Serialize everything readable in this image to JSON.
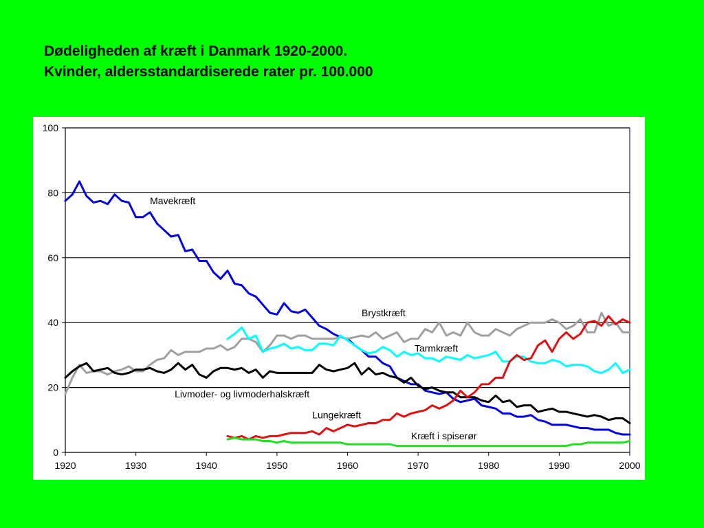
{
  "title_line1": "Dødeligheden af kræft i Danmark 1920-2000.",
  "title_line2": "Kvinder, aldersstandardiserede rater pr. 100.000",
  "chart_data": {
    "type": "line",
    "title": "",
    "xlabel": "",
    "ylabel": "",
    "xlim": [
      1920,
      2000
    ],
    "ylim": [
      0,
      100
    ],
    "xticks": [
      1920,
      1930,
      1940,
      1950,
      1960,
      1970,
      1980,
      1990,
      2000
    ],
    "yticks": [
      0,
      20,
      40,
      60,
      80,
      100
    ],
    "grid": "horizontal",
    "legend": "none",
    "series": [
      {
        "name": "Mavekræft",
        "color": "#0000e0",
        "x": [
          1920,
          1921,
          1922,
          1923,
          1924,
          1925,
          1926,
          1927,
          1928,
          1929,
          1930,
          1931,
          1932,
          1933,
          1934,
          1935,
          1936,
          1937,
          1938,
          1939,
          1940,
          1941,
          1942,
          1943,
          1944,
          1945,
          1946,
          1947,
          1948,
          1949,
          1950,
          1951,
          1952,
          1953,
          1954,
          1955,
          1956,
          1957,
          1958,
          1959,
          1960,
          1961,
          1962,
          1963,
          1964,
          1965,
          1966,
          1967,
          1968,
          1969,
          1970,
          1971,
          1972,
          1973,
          1974,
          1975,
          1976,
          1977,
          1978,
          1979,
          1980,
          1981,
          1982,
          1983,
          1984,
          1985,
          1986,
          1987,
          1988,
          1989,
          1990,
          1991,
          1992,
          1993,
          1994,
          1995,
          1996,
          1997,
          1998,
          1999,
          2000
        ],
        "values": [
          77.5,
          79.5,
          83.5,
          79,
          77,
          77.5,
          76.5,
          79.5,
          77.5,
          77,
          72.5,
          72.5,
          74,
          70.5,
          68.5,
          66.5,
          67,
          62,
          62.5,
          59,
          59,
          55.5,
          53.5,
          56,
          52,
          51.5,
          49,
          48,
          45.5,
          43,
          42.5,
          46,
          43.5,
          43,
          44,
          41.5,
          39,
          38,
          36.5,
          35.5,
          35,
          33,
          31.5,
          29.5,
          29.5,
          27.5,
          26.5,
          23,
          22,
          21,
          21,
          19,
          18.5,
          18,
          18.5,
          16.5,
          15.5,
          16,
          16.5,
          14.5,
          14,
          13.5,
          12,
          12,
          11,
          11,
          11.5,
          10,
          9.5,
          8.5,
          8.5,
          8.5,
          8,
          7.5,
          7.5,
          7,
          7,
          7,
          6,
          5.5,
          5.5
        ]
      },
      {
        "name": "Brystkræft",
        "color": "#a0a0a0",
        "x": [
          1920,
          1921,
          1922,
          1923,
          1924,
          1925,
          1926,
          1927,
          1928,
          1929,
          1930,
          1931,
          1932,
          1933,
          1934,
          1935,
          1936,
          1937,
          1938,
          1939,
          1940,
          1941,
          1942,
          1943,
          1944,
          1945,
          1946,
          1947,
          1948,
          1949,
          1950,
          1951,
          1952,
          1953,
          1954,
          1955,
          1956,
          1957,
          1958,
          1959,
          1960,
          1961,
          1962,
          1963,
          1964,
          1965,
          1966,
          1967,
          1968,
          1969,
          1970,
          1971,
          1972,
          1973,
          1974,
          1975,
          1976,
          1977,
          1978,
          1979,
          1980,
          1981,
          1982,
          1983,
          1984,
          1985,
          1986,
          1987,
          1988,
          1989,
          1990,
          1991,
          1992,
          1993,
          1994,
          1995,
          1996,
          1997,
          1998,
          1999,
          2000
        ],
        "values": [
          18,
          23,
          27,
          24.5,
          25,
          25,
          24,
          25,
          25.5,
          26.5,
          25,
          25,
          27,
          28.5,
          29,
          31.5,
          30,
          31,
          31,
          31,
          32,
          32,
          33,
          31.5,
          32.5,
          35,
          35,
          34,
          31,
          33,
          36,
          36,
          35,
          36,
          36,
          35,
          35,
          35,
          35,
          35.5,
          35,
          35.5,
          36,
          35.5,
          37,
          35,
          36,
          37,
          34,
          35,
          35,
          38,
          37,
          40,
          36,
          37,
          36,
          40,
          37,
          36,
          36,
          38,
          37,
          36,
          38,
          39,
          40,
          40,
          40,
          41,
          40,
          38,
          39,
          41,
          37,
          37,
          43,
          39,
          40,
          37,
          37
        ]
      },
      {
        "name": "Tarmkræft",
        "color": "#00ffff",
        "x": [
          1943,
          1944,
          1945,
          1946,
          1947,
          1948,
          1949,
          1950,
          1951,
          1952,
          1953,
          1954,
          1955,
          1956,
          1957,
          1958,
          1959,
          1960,
          1961,
          1962,
          1963,
          1964,
          1965,
          1966,
          1967,
          1968,
          1969,
          1970,
          1971,
          1972,
          1973,
          1974,
          1975,
          1976,
          1977,
          1978,
          1979,
          1980,
          1981,
          1982,
          1983,
          1984,
          1985,
          1986,
          1987,
          1988,
          1989,
          1990,
          1991,
          1992,
          1993,
          1994,
          1995,
          1996,
          1997,
          1998,
          1999,
          2000
        ],
        "values": [
          35,
          36.5,
          38.5,
          35,
          36,
          31,
          32,
          32.5,
          33.5,
          32,
          32.5,
          31.5,
          31.5,
          33.5,
          33.5,
          33,
          36,
          34.5,
          33,
          31.5,
          30.5,
          31,
          32.5,
          31.5,
          29.5,
          31,
          30,
          30.5,
          29,
          29,
          28,
          29.5,
          29,
          28.5,
          30,
          29,
          29.5,
          30,
          31,
          28,
          28,
          29.5,
          29.5,
          28,
          27.5,
          27.5,
          28.5,
          28,
          26.5,
          27,
          27,
          26.5,
          25,
          24.5,
          25.5,
          27.5,
          24.5,
          25.5
        ]
      },
      {
        "name": "Livmoder- og livmoderhalskræft",
        "color": "#000000",
        "x": [
          1920,
          1921,
          1922,
          1923,
          1924,
          1925,
          1926,
          1927,
          1928,
          1929,
          1930,
          1931,
          1932,
          1933,
          1934,
          1935,
          1936,
          1937,
          1938,
          1939,
          1940,
          1941,
          1942,
          1943,
          1944,
          1945,
          1946,
          1947,
          1948,
          1949,
          1950,
          1951,
          1952,
          1953,
          1954,
          1955,
          1956,
          1957,
          1958,
          1959,
          1960,
          1961,
          1962,
          1963,
          1964,
          1965,
          1966,
          1967,
          1968,
          1969,
          1970,
          1971,
          1972,
          1973,
          1974,
          1975,
          1976,
          1977,
          1978,
          1979,
          1980,
          1981,
          1982,
          1983,
          1984,
          1985,
          1986,
          1987,
          1988,
          1989,
          1990,
          1991,
          1992,
          1993,
          1994,
          1995,
          1996,
          1997,
          1998,
          1999,
          2000
        ],
        "values": [
          23,
          25,
          26.5,
          27.5,
          25,
          25.5,
          26,
          24.5,
          24,
          24.5,
          25.5,
          25.5,
          26,
          25,
          24.5,
          25.5,
          27.5,
          25.5,
          27,
          24,
          23,
          25,
          26,
          26,
          25.5,
          26,
          24.5,
          25.5,
          23,
          25,
          24.5,
          24.5,
          24.5,
          24.5,
          24.5,
          24.5,
          27,
          25.5,
          25,
          25.5,
          26,
          27.5,
          24,
          26,
          24,
          24.5,
          23.5,
          23,
          21.5,
          23,
          20.5,
          19.5,
          20,
          19,
          18.5,
          18.5,
          17,
          17,
          17,
          16,
          15.5,
          17.5,
          15.5,
          16,
          14,
          14.5,
          14.5,
          12.5,
          13,
          13.5,
          12.5,
          12.5,
          12,
          11.5,
          11,
          11.5,
          11,
          10,
          10.5,
          10.5,
          9
        ]
      },
      {
        "name": "Lungekræft",
        "color": "#e01010",
        "x": [
          1943,
          1944,
          1945,
          1946,
          1947,
          1948,
          1949,
          1950,
          1951,
          1952,
          1953,
          1954,
          1955,
          1956,
          1957,
          1958,
          1959,
          1960,
          1961,
          1962,
          1963,
          1964,
          1965,
          1966,
          1967,
          1968,
          1969,
          1970,
          1971,
          1972,
          1973,
          1974,
          1975,
          1976,
          1977,
          1978,
          1979,
          1980,
          1981,
          1982,
          1983,
          1984,
          1985,
          1986,
          1987,
          1988,
          1989,
          1990,
          1991,
          1992,
          1993,
          1994,
          1995,
          1996,
          1997,
          1998,
          1999,
          2000
        ],
        "values": [
          5,
          4.5,
          5,
          4,
          5,
          4.5,
          5,
          5,
          5.5,
          6,
          6,
          6,
          6.5,
          5.5,
          7.5,
          6.5,
          7.5,
          8.5,
          8,
          8.5,
          9,
          9,
          10,
          10,
          12,
          11,
          12,
          12.5,
          13,
          14.5,
          13.5,
          14.5,
          16,
          19,
          17,
          18.5,
          21,
          21,
          23,
          23,
          28,
          30,
          28.5,
          29,
          33,
          34.5,
          31,
          35,
          37,
          35,
          36.5,
          40,
          40.5,
          39,
          42,
          39.5,
          41,
          40
        ]
      },
      {
        "name": "Kræft i spiserør",
        "color": "#20e020",
        "x": [
          1943,
          1944,
          1945,
          1946,
          1947,
          1948,
          1949,
          1950,
          1951,
          1952,
          1953,
          1954,
          1955,
          1956,
          1957,
          1958,
          1959,
          1960,
          1961,
          1962,
          1963,
          1964,
          1965,
          1966,
          1967,
          1968,
          1969,
          1970,
          1971,
          1972,
          1973,
          1974,
          1975,
          1976,
          1977,
          1978,
          1979,
          1980,
          1981,
          1982,
          1983,
          1984,
          1985,
          1986,
          1987,
          1988,
          1989,
          1990,
          1991,
          1992,
          1993,
          1994,
          1995,
          1996,
          1997,
          1998,
          1999,
          2000
        ],
        "values": [
          4,
          4.5,
          4,
          4,
          4,
          3.5,
          3.5,
          3,
          3.5,
          3,
          3,
          3,
          3,
          3,
          3,
          3,
          3,
          2.5,
          2.5,
          2.5,
          2.5,
          2.5,
          2.5,
          2.5,
          2,
          2,
          2,
          2,
          2,
          2,
          2,
          2,
          2,
          2,
          2,
          2,
          2,
          2,
          2,
          2,
          2,
          2,
          2,
          2,
          2,
          2,
          2,
          2,
          2,
          2.5,
          2.5,
          3,
          3,
          3,
          3,
          3,
          3,
          3.5
        ]
      }
    ],
    "annotations": [
      {
        "text": "Mavekræft",
        "x": 1932,
        "y": 76.5
      },
      {
        "text": "Brystkræft",
        "x": 1962,
        "y": 42
      },
      {
        "text": "Tarmkræft",
        "x": 1969.5,
        "y": 31
      },
      {
        "text": "Livmoder- og livmoderhalskræft",
        "x": 1935.5,
        "y": 17
      },
      {
        "text": "Lungekræft",
        "x": 1955,
        "y": 10.5
      },
      {
        "text": "Kræft i spiserør",
        "x": 1969,
        "y": 4
      }
    ]
  }
}
